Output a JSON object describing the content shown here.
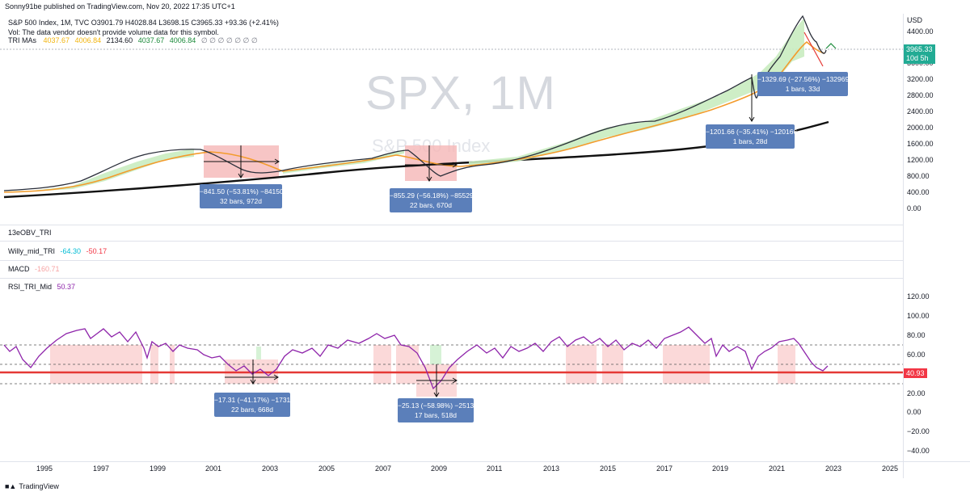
{
  "header": {
    "publisher": "Sonny91be published on TradingView.com, Nov 20, 2022 17:35 UTC+1",
    "symbol_line": "S&P 500 Index, 1M, TVC  O3901.79  H4028.84  L3698.15  C3965.33  +93.36 (+2.41%)",
    "vol_line": "Vol: The data vendor doesn't provide volume data for this symbol.",
    "tri_label": "TRI MAs",
    "tri_values": [
      "4037.67",
      "4006.84",
      "2134.60",
      "4037.67",
      "4006.84",
      "∅ ∅ ∅ ∅ ∅ ∅ ∅"
    ]
  },
  "watermark": {
    "symbol": "SPX, 1M",
    "name": "S&P 500 Index"
  },
  "price_axis": {
    "currency": "USD",
    "ticks": [
      "4400.00",
      "4000.00",
      "3600.00",
      "3200.00",
      "2800.00",
      "2400.00",
      "2000.00",
      "1600.00",
      "1200.00",
      "800.00",
      "400.00",
      "0.00"
    ],
    "last_price": "3965.33",
    "countdown": "10d 5h"
  },
  "rsi_axis": {
    "ticks": [
      "120.00",
      "100.00",
      "80.00",
      "60.00",
      "40.00",
      "20.00",
      "0.00",
      "−20.00",
      "−40.00"
    ],
    "marker": "40.93"
  },
  "time_axis": [
    "1995",
    "1997",
    "1999",
    "2001",
    "2003",
    "2005",
    "2007",
    "2009",
    "2011",
    "2013",
    "2015",
    "2017",
    "2019",
    "2021",
    "2023",
    "2025"
  ],
  "panes": {
    "obv": "13eOBV_TRI",
    "willy": {
      "label": "Willy_mid_TRI",
      "v1": "-64.30",
      "v2": "-50.17"
    },
    "macd": {
      "label": "MACD",
      "v1": "-160.71"
    },
    "rsi": {
      "label": "RSI_TRI_Mid",
      "v1": "50.37"
    }
  },
  "measures": {
    "m1": {
      "line1": "−841.50 (−53.81%) −84150",
      "line2": "32 bars, 972d"
    },
    "m2": {
      "line1": "−855.29 (−56.18%) −85529",
      "line2": "22 bars, 670d"
    },
    "m3": {
      "line1": "−1201.66 (−35.41%) −120166",
      "line2": "1 bars, 28d"
    },
    "m4": {
      "line1": "−1329.69 (−27.56%) −132969",
      "line2": "1 bars, 33d"
    },
    "r1": {
      "line1": "−17.31 (−41.17%) −1731",
      "line2": "22 bars, 668d"
    },
    "r2": {
      "line1": "−25.13 (−58.98%) −2513",
      "line2": "17 bars, 518d"
    }
  },
  "footer": {
    "brand": "TradingView"
  },
  "colors": {
    "box": "#5b7fba",
    "rsi": "#8e24aa",
    "red_line": "#e53935",
    "pos_tag": "#22ab94",
    "neg_tag": "#f23645"
  }
}
